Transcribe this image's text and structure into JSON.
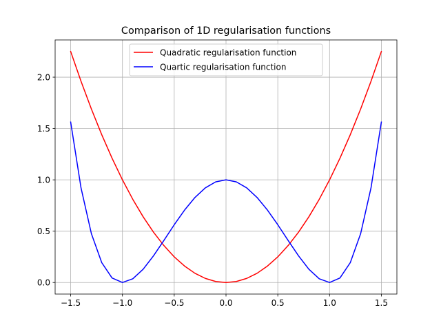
{
  "chart_data": {
    "type": "line",
    "title": "Comparison of 1D regularisation functions",
    "xlabel": "",
    "ylabel": "",
    "xlim": [
      -1.65,
      1.65
    ],
    "ylim": [
      -0.1125,
      2.3625
    ],
    "grid": true,
    "legend_position": "top-center",
    "xticks": [
      -1.5,
      -1.0,
      -0.5,
      0.0,
      0.5,
      1.0,
      1.5
    ],
    "xtick_labels": [
      "−1.5",
      "−1.0",
      "−0.5",
      "0.0",
      "0.5",
      "1.0",
      "1.5"
    ],
    "yticks": [
      0.0,
      0.5,
      1.0,
      1.5,
      2.0
    ],
    "ytick_labels": [
      "0.0",
      "0.5",
      "1.0",
      "1.5",
      "2.0"
    ],
    "x": [
      -1.5,
      -1.4,
      -1.3,
      -1.2,
      -1.1,
      -1.0,
      -0.9,
      -0.8,
      -0.7,
      -0.6,
      -0.5,
      -0.4,
      -0.3,
      -0.2,
      -0.1,
      0.0,
      0.1,
      0.2,
      0.3,
      0.4,
      0.5,
      0.6,
      0.7,
      0.8,
      0.9,
      1.0,
      1.1,
      1.2,
      1.3,
      1.4,
      1.5
    ],
    "series": [
      {
        "name": "Quadratic regularisation function",
        "color": "#ff0000",
        "values": [
          2.25,
          1.96,
          1.69,
          1.44,
          1.21,
          1.0,
          0.81,
          0.64,
          0.49,
          0.36,
          0.25,
          0.16,
          0.09,
          0.04,
          0.01,
          0.0,
          0.01,
          0.04,
          0.09,
          0.16,
          0.25,
          0.36,
          0.49,
          0.64,
          0.81,
          1.0,
          1.21,
          1.44,
          1.69,
          1.96,
          2.25
        ]
      },
      {
        "name": "Quartic regularisation function",
        "color": "#0000ff",
        "values": [
          1.5625,
          0.9216,
          0.4761,
          0.1936,
          0.0441,
          0.0,
          0.0361,
          0.1296,
          0.2601,
          0.4096,
          0.5625,
          0.7056,
          0.8281,
          0.9216,
          0.9801,
          1.0,
          0.9801,
          0.9216,
          0.8281,
          0.7056,
          0.5625,
          0.4096,
          0.2601,
          0.1296,
          0.0361,
          0.0,
          0.0441,
          0.1936,
          0.4761,
          0.9216,
          1.5625
        ]
      }
    ]
  }
}
